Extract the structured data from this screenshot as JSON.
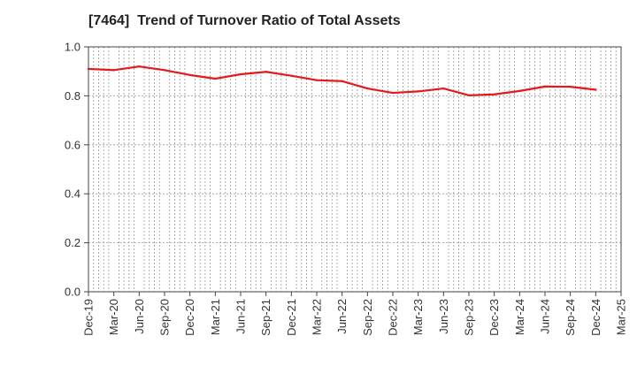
{
  "chart_data": {
    "type": "line",
    "title": "[7464]  Trend of Turnover Ratio of Total Assets",
    "xlabel": "",
    "ylabel": "",
    "ylim": [
      0.0,
      1.0
    ],
    "y_ticks": [
      "0.0",
      "0.2",
      "0.4",
      "0.6",
      "0.8",
      "1.0"
    ],
    "x_tick_labels": [
      "Dec-19",
      "Mar-20",
      "Jun-20",
      "Sep-20",
      "Dec-20",
      "Mar-21",
      "Jun-21",
      "Sep-21",
      "Dec-21",
      "Mar-22",
      "Jun-22",
      "Sep-22",
      "Dec-22",
      "Mar-23",
      "Jun-23",
      "Sep-23",
      "Dec-23",
      "Mar-24",
      "Jun-24",
      "Sep-24",
      "Dec-24",
      "Mar-25"
    ],
    "grid": true,
    "series": [
      {
        "color": "#e31a1c",
        "x": [
          "Dec-19",
          "Mar-20",
          "Jun-20",
          "Sep-20",
          "Dec-20",
          "Mar-21",
          "Jun-21",
          "Sep-21",
          "Dec-21",
          "Mar-22",
          "Jun-22",
          "Sep-22",
          "Dec-22",
          "Mar-23",
          "Jun-23",
          "Sep-23",
          "Dec-23",
          "Mar-24",
          "Jun-24",
          "Sep-24",
          "Dec-24"
        ],
        "values": [
          0.91,
          0.905,
          0.92,
          0.905,
          0.885,
          0.87,
          0.888,
          0.898,
          0.882,
          0.864,
          0.86,
          0.83,
          0.812,
          0.818,
          0.83,
          0.802,
          0.806,
          0.82,
          0.838,
          0.837,
          0.825
        ]
      }
    ]
  }
}
